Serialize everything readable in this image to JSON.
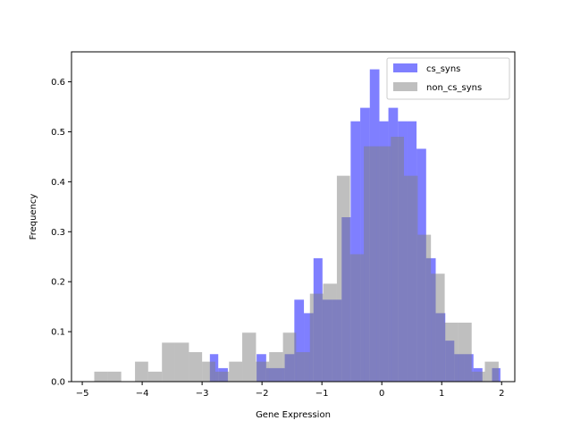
{
  "chart_data": {
    "type": "bar",
    "xlabel": "Gene Expression",
    "ylabel": "Frequency",
    "xlim": [
      -5.18,
      2.22
    ],
    "ylim": [
      0,
      0.66
    ],
    "xticks": [
      -5,
      -4,
      -3,
      -2,
      -1,
      0,
      1,
      2
    ],
    "yticks": [
      0.0,
      0.1,
      0.2,
      0.3,
      0.4,
      0.5,
      0.6
    ],
    "xtick_labels": [
      "−5",
      "−4",
      "−3",
      "−2",
      "−1",
      "0",
      "1",
      "2"
    ],
    "ytick_labels": [
      "0.0",
      "0.1",
      "0.2",
      "0.3",
      "0.4",
      "0.5",
      "0.6"
    ],
    "grid": false,
    "legend_position": "top-right",
    "series": [
      {
        "name": "cs_syns",
        "color": "#0000ff",
        "opacity": 0.5,
        "bins": [
          {
            "x0": -2.87,
            "x1": -2.73,
            "y": 0.055
          },
          {
            "x0": -2.73,
            "x1": -2.57,
            "y": 0.027
          },
          {
            "x0": -2.09,
            "x1": -1.93,
            "y": 0.055
          },
          {
            "x0": -1.93,
            "x1": -1.62,
            "y": 0.027
          },
          {
            "x0": -1.62,
            "x1": -1.46,
            "y": 0.055
          },
          {
            "x0": -1.46,
            "x1": -1.3,
            "y": 0.164
          },
          {
            "x0": -1.3,
            "x1": -1.14,
            "y": 0.137
          },
          {
            "x0": -1.14,
            "x1": -0.99,
            "y": 0.247
          },
          {
            "x0": -0.99,
            "x1": -0.83,
            "y": 0.164
          },
          {
            "x0": -0.83,
            "x1": -0.67,
            "y": 0.164
          },
          {
            "x0": -0.67,
            "x1": -0.52,
            "y": 0.329
          },
          {
            "x0": -0.52,
            "x1": -0.36,
            "y": 0.521
          },
          {
            "x0": -0.36,
            "x1": -0.2,
            "y": 0.548
          },
          {
            "x0": -0.2,
            "x1": -0.04,
            "y": 0.625
          },
          {
            "x0": -0.04,
            "x1": 0.11,
            "y": 0.521
          },
          {
            "x0": 0.11,
            "x1": 0.27,
            "y": 0.548
          },
          {
            "x0": 0.27,
            "x1": 0.43,
            "y": 0.521
          },
          {
            "x0": 0.43,
            "x1": 0.58,
            "y": 0.521
          },
          {
            "x0": 0.58,
            "x1": 0.74,
            "y": 0.466
          },
          {
            "x0": 0.74,
            "x1": 0.9,
            "y": 0.247
          },
          {
            "x0": 0.9,
            "x1": 1.06,
            "y": 0.137
          },
          {
            "x0": 1.06,
            "x1": 1.21,
            "y": 0.082
          },
          {
            "x0": 1.21,
            "x1": 1.37,
            "y": 0.055
          },
          {
            "x0": 1.37,
            "x1": 1.53,
            "y": 0.055
          },
          {
            "x0": 1.53,
            "x1": 1.68,
            "y": 0.027
          },
          {
            "x0": 1.84,
            "x1": 1.98,
            "y": 0.027
          }
        ]
      },
      {
        "name": "non_cs_syns",
        "color": "#808080",
        "opacity": 0.5,
        "bins": [
          {
            "x0": -4.8,
            "x1": -4.57,
            "y": 0.02
          },
          {
            "x0": -4.57,
            "x1": -4.35,
            "y": 0.02
          },
          {
            "x0": -4.12,
            "x1": -3.9,
            "y": 0.04
          },
          {
            "x0": -3.9,
            "x1": -3.67,
            "y": 0.02
          },
          {
            "x0": -3.67,
            "x1": -3.45,
            "y": 0.078
          },
          {
            "x0": -3.45,
            "x1": -3.22,
            "y": 0.078
          },
          {
            "x0": -3.22,
            "x1": -3.0,
            "y": 0.059
          },
          {
            "x0": -3.0,
            "x1": -2.78,
            "y": 0.04
          },
          {
            "x0": -2.78,
            "x1": -2.55,
            "y": 0.02
          },
          {
            "x0": -2.55,
            "x1": -2.33,
            "y": 0.04
          },
          {
            "x0": -2.33,
            "x1": -2.1,
            "y": 0.098
          },
          {
            "x0": -2.1,
            "x1": -1.88,
            "y": 0.04
          },
          {
            "x0": -1.88,
            "x1": -1.65,
            "y": 0.059
          },
          {
            "x0": -1.65,
            "x1": -1.43,
            "y": 0.098
          },
          {
            "x0": -1.43,
            "x1": -1.2,
            "y": 0.059
          },
          {
            "x0": -1.2,
            "x1": -0.98,
            "y": 0.176
          },
          {
            "x0": -0.98,
            "x1": -0.75,
            "y": 0.196
          },
          {
            "x0": -0.75,
            "x1": -0.53,
            "y": 0.412
          },
          {
            "x0": -0.53,
            "x1": -0.3,
            "y": 0.255
          },
          {
            "x0": -0.3,
            "x1": -0.08,
            "y": 0.471
          },
          {
            "x0": -0.08,
            "x1": 0.15,
            "y": 0.471
          },
          {
            "x0": 0.15,
            "x1": 0.37,
            "y": 0.49
          },
          {
            "x0": 0.37,
            "x1": 0.6,
            "y": 0.412
          },
          {
            "x0": 0.6,
            "x1": 0.82,
            "y": 0.294
          },
          {
            "x0": 0.82,
            "x1": 1.05,
            "y": 0.216
          },
          {
            "x0": 1.05,
            "x1": 1.27,
            "y": 0.118
          },
          {
            "x0": 1.27,
            "x1": 1.5,
            "y": 0.118
          },
          {
            "x0": 1.5,
            "x1": 1.72,
            "y": 0.02
          },
          {
            "x0": 1.72,
            "x1": 1.95,
            "y": 0.04
          }
        ]
      }
    ]
  }
}
